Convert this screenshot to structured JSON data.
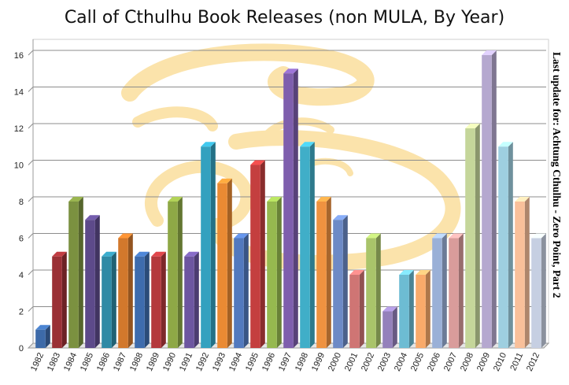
{
  "chart_data": {
    "type": "bar",
    "title": "Call of Cthulhu Book Releases (non MULA, By Year)",
    "side_note": "Last update for: Achtung Cthulhu - Zero Point, Part 2",
    "xlabel": "",
    "ylabel": "",
    "ylim": [
      0,
      16
    ],
    "yticks": [
      0,
      2,
      4,
      6,
      8,
      10,
      12,
      14,
      16
    ],
    "grid": true,
    "legend": "none",
    "categories": [
      "1982",
      "1983",
      "1984",
      "1985",
      "1986",
      "1987",
      "1988",
      "1989",
      "1990",
      "1991",
      "1992",
      "1993",
      "1994",
      "1995",
      "1996",
      "1997",
      "1998",
      "1999",
      "2000",
      "2001",
      "2002",
      "2003",
      "2004",
      "2005",
      "2006",
      "2007",
      "2008",
      "2009",
      "2010",
      "2011",
      "2012"
    ],
    "values": [
      1,
      5,
      8,
      7,
      5,
      6,
      5,
      5,
      8,
      5,
      11,
      9,
      6,
      10,
      8,
      15,
      11,
      8,
      7,
      4,
      6,
      2,
      4,
      4,
      6,
      6,
      12,
      16,
      11,
      8,
      6
    ],
    "colors": [
      "#3d6aa8",
      "#9a3035",
      "#7b9140",
      "#5d4a8a",
      "#2f8aa5",
      "#d2782c",
      "#3e6cad",
      "#b4393c",
      "#8ea846",
      "#6d56a0",
      "#33a1bf",
      "#ea8a33",
      "#5279be",
      "#c43f3f",
      "#96b94f",
      "#7e5ead",
      "#40aec8",
      "#ef9240",
      "#6d8ac6",
      "#cf7574",
      "#a9c46a",
      "#9481bb",
      "#6dbcd3",
      "#f9aa6a",
      "#9ab0d7",
      "#d99c9b",
      "#c5d69a",
      "#b5a8cf",
      "#9ecfe0",
      "#f9c09a",
      "#c6cfe2"
    ]
  }
}
